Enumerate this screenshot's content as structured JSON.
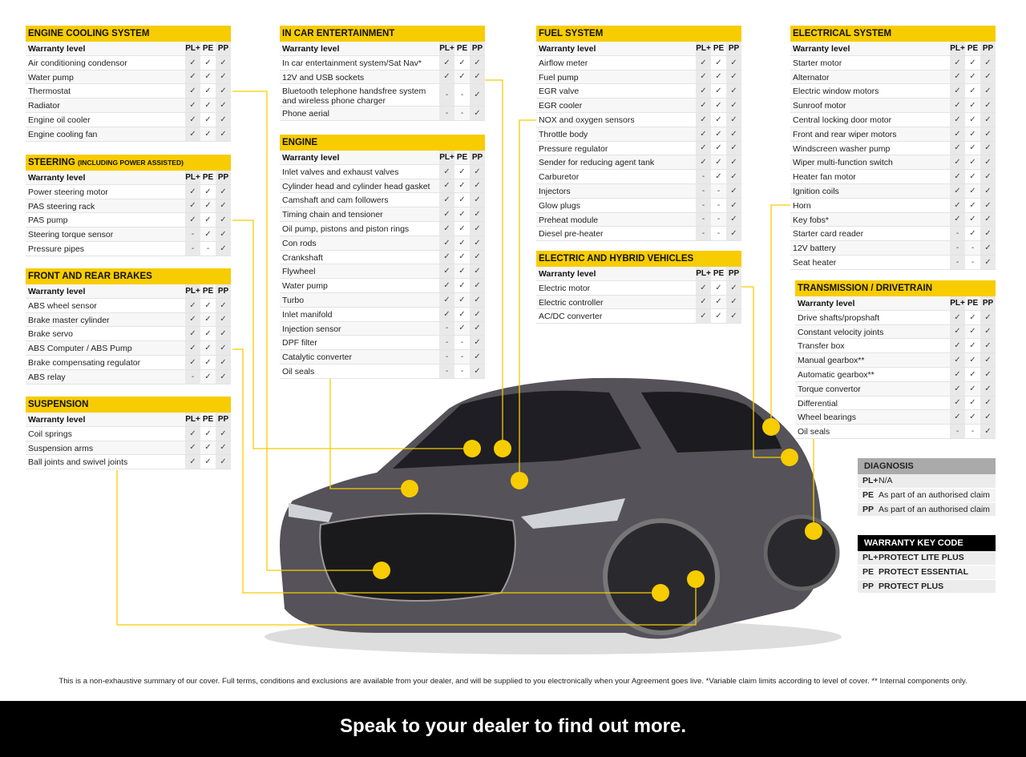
{
  "columns": [
    "PL+",
    "PE",
    "PP"
  ],
  "header_label": "Warranty level",
  "colors": {
    "accent": "#f7cc00",
    "covered_mark": "✓",
    "not_covered_mark": "-"
  },
  "tables": [
    {
      "id": "engine-cooling",
      "title": "ENGINE COOLING SYSTEM",
      "rows": [
        [
          "Air conditioning condensor",
          "✓",
          "✓",
          "✓"
        ],
        [
          "Water pump",
          "✓",
          "✓",
          "✓"
        ],
        [
          "Thermostat",
          "✓",
          "✓",
          "✓"
        ],
        [
          "Radiator",
          "✓",
          "✓",
          "✓"
        ],
        [
          "Engine oil cooler",
          "✓",
          "✓",
          "✓"
        ],
        [
          "Engine cooling fan",
          "✓",
          "✓",
          "✓"
        ]
      ]
    },
    {
      "id": "steering",
      "title": "STEERING",
      "subtitle": "(INCLUDING POWER ASSISTED)",
      "rows": [
        [
          "Power steering motor",
          "✓",
          "✓",
          "✓"
        ],
        [
          "PAS steering rack",
          "✓",
          "✓",
          "✓"
        ],
        [
          "PAS pump",
          "✓",
          "✓",
          "✓"
        ],
        [
          "Steering torque sensor",
          "-",
          "✓",
          "✓"
        ],
        [
          "Pressure pipes",
          "-",
          "-",
          "✓"
        ]
      ]
    },
    {
      "id": "brakes",
      "title": "FRONT AND REAR BRAKES",
      "rows": [
        [
          "ABS wheel sensor",
          "✓",
          "✓",
          "✓"
        ],
        [
          "Brake master cylinder",
          "✓",
          "✓",
          "✓"
        ],
        [
          "Brake servo",
          "✓",
          "✓",
          "✓"
        ],
        [
          "ABS Computer / ABS Pump",
          "✓",
          "✓",
          "✓"
        ],
        [
          "Brake compensating regulator",
          "✓",
          "✓",
          "✓"
        ],
        [
          "ABS relay",
          "-",
          "✓",
          "✓"
        ]
      ]
    },
    {
      "id": "suspension",
      "title": "SUSPENSION",
      "rows": [
        [
          "Coil springs",
          "✓",
          "✓",
          "✓"
        ],
        [
          "Suspension arms",
          "✓",
          "✓",
          "✓"
        ],
        [
          "Ball joints and swivel joints",
          "✓",
          "✓",
          "✓"
        ]
      ]
    },
    {
      "id": "entertainment",
      "title": "IN CAR ENTERTAINMENT",
      "rows": [
        [
          "In car entertainment system/Sat Nav*",
          "✓",
          "✓",
          "✓"
        ],
        [
          "12V and USB sockets",
          "✓",
          "✓",
          "✓"
        ],
        [
          "Bluetooth telephone handsfree system and wireless phone charger",
          "-",
          "-",
          "✓"
        ],
        [
          "Phone aerial",
          "-",
          "-",
          "✓"
        ]
      ]
    },
    {
      "id": "engine",
      "title": "ENGINE",
      "rows": [
        [
          "Inlet valves and exhaust valves",
          "✓",
          "✓",
          "✓"
        ],
        [
          "Cylinder head and cylinder head gasket",
          "✓",
          "✓",
          "✓"
        ],
        [
          "Camshaft and cam followers",
          "✓",
          "✓",
          "✓"
        ],
        [
          "Timing chain and tensioner",
          "✓",
          "✓",
          "✓"
        ],
        [
          "Oil pump, pistons and piston rings",
          "✓",
          "✓",
          "✓"
        ],
        [
          "Con rods",
          "✓",
          "✓",
          "✓"
        ],
        [
          "Crankshaft",
          "✓",
          "✓",
          "✓"
        ],
        [
          "Flywheel",
          "✓",
          "✓",
          "✓"
        ],
        [
          "Water pump",
          "✓",
          "✓",
          "✓"
        ],
        [
          "Turbo",
          "✓",
          "✓",
          "✓"
        ],
        [
          "Inlet manifold",
          "✓",
          "✓",
          "✓"
        ],
        [
          "Injection sensor",
          "-",
          "✓",
          "✓"
        ],
        [
          "DPF filter",
          "-",
          "-",
          "✓"
        ],
        [
          "Catalytic converter",
          "-",
          "-",
          "✓"
        ],
        [
          "Oil seals",
          "-",
          "-",
          "✓"
        ]
      ]
    },
    {
      "id": "fuel",
      "title": "FUEL SYSTEM",
      "rows": [
        [
          "Airflow meter",
          "✓",
          "✓",
          "✓"
        ],
        [
          "Fuel pump",
          "✓",
          "✓",
          "✓"
        ],
        [
          "EGR valve",
          "✓",
          "✓",
          "✓"
        ],
        [
          "EGR cooler",
          "✓",
          "✓",
          "✓"
        ],
        [
          "NOX and oxygen sensors",
          "✓",
          "✓",
          "✓"
        ],
        [
          "Throttle body",
          "✓",
          "✓",
          "✓"
        ],
        [
          "Pressure regulator",
          "✓",
          "✓",
          "✓"
        ],
        [
          "Sender for reducing agent tank",
          "✓",
          "✓",
          "✓"
        ],
        [
          "Carburetor",
          "-",
          "✓",
          "✓"
        ],
        [
          "Injectors",
          "-",
          "-",
          "✓"
        ],
        [
          "Glow plugs",
          "-",
          "-",
          "✓"
        ],
        [
          "Preheat module",
          "-",
          "-",
          "✓"
        ],
        [
          "Diesel pre-heater",
          "-",
          "-",
          "✓"
        ]
      ]
    },
    {
      "id": "electric-hybrid",
      "title": "ELECTRIC AND HYBRID VEHICLES",
      "rows": [
        [
          "Electric motor",
          "✓",
          "✓",
          "✓"
        ],
        [
          "Electric controller",
          "✓",
          "✓",
          "✓"
        ],
        [
          "AC/DC converter",
          "✓",
          "✓",
          "✓"
        ]
      ]
    },
    {
      "id": "electrical",
      "title": "ELECTRICAL SYSTEM",
      "rows": [
        [
          "Starter motor",
          "✓",
          "✓",
          "✓"
        ],
        [
          "Alternator",
          "✓",
          "✓",
          "✓"
        ],
        [
          "Electric window motors",
          "✓",
          "✓",
          "✓"
        ],
        [
          "Sunroof motor",
          "✓",
          "✓",
          "✓"
        ],
        [
          "Central locking door motor",
          "✓",
          "✓",
          "✓"
        ],
        [
          "Front and rear wiper motors",
          "✓",
          "✓",
          "✓"
        ],
        [
          "Windscreen washer pump",
          "✓",
          "✓",
          "✓"
        ],
        [
          "Wiper multi-function switch",
          "✓",
          "✓",
          "✓"
        ],
        [
          "Heater fan motor",
          "✓",
          "✓",
          "✓"
        ],
        [
          "Ignition coils",
          "✓",
          "✓",
          "✓"
        ],
        [
          "Horn",
          "✓",
          "✓",
          "✓"
        ],
        [
          "Key fobs*",
          "✓",
          "✓",
          "✓"
        ],
        [
          "Starter card reader",
          "-",
          "✓",
          "✓"
        ],
        [
          "12V battery",
          "-",
          "-",
          "✓"
        ],
        [
          "Seat heater",
          "-",
          "-",
          "✓"
        ]
      ]
    },
    {
      "id": "transmission",
      "title": "TRANSMISSION / DRIVETRAIN",
      "rows": [
        [
          "Drive shafts/propshaft",
          "✓",
          "✓",
          "✓"
        ],
        [
          "Constant velocity joints",
          "✓",
          "✓",
          "✓"
        ],
        [
          "Transfer box",
          "✓",
          "✓",
          "✓"
        ],
        [
          "Manual gearbox**",
          "✓",
          "✓",
          "✓"
        ],
        [
          "Automatic gearbox**",
          "✓",
          "✓",
          "✓"
        ],
        [
          "Torque convertor",
          "✓",
          "✓",
          "✓"
        ],
        [
          "Differential",
          "✓",
          "✓",
          "✓"
        ],
        [
          "Wheel bearings",
          "✓",
          "✓",
          "✓"
        ],
        [
          "Oil seals",
          "-",
          "-",
          "✓"
        ]
      ]
    }
  ],
  "diagnosis": {
    "title": "DIAGNOSIS",
    "rows": [
      {
        "key": "PL+",
        "value": "N/A"
      },
      {
        "key": "PE",
        "value": "As part of an authorised claim"
      },
      {
        "key": "PP",
        "value": "As part of an authorised claim"
      }
    ]
  },
  "key_code": {
    "title": "WARRANTY KEY CODE",
    "rows": [
      {
        "key": "PL+",
        "value": "PROTECT LITE PLUS"
      },
      {
        "key": "PE",
        "value": "PROTECT ESSENTIAL"
      },
      {
        "key": "PP",
        "value": "PROTECT PLUS"
      }
    ]
  },
  "footnote": "This is a non-exhaustive summary of our cover. Full terms, conditions and exclusions are available from your dealer, and will be supplied to you electronically when your Agreement goes live. *Variable claim limits according to level of cover. ** Internal components only.",
  "cta": "Speak to your dealer to find out more."
}
